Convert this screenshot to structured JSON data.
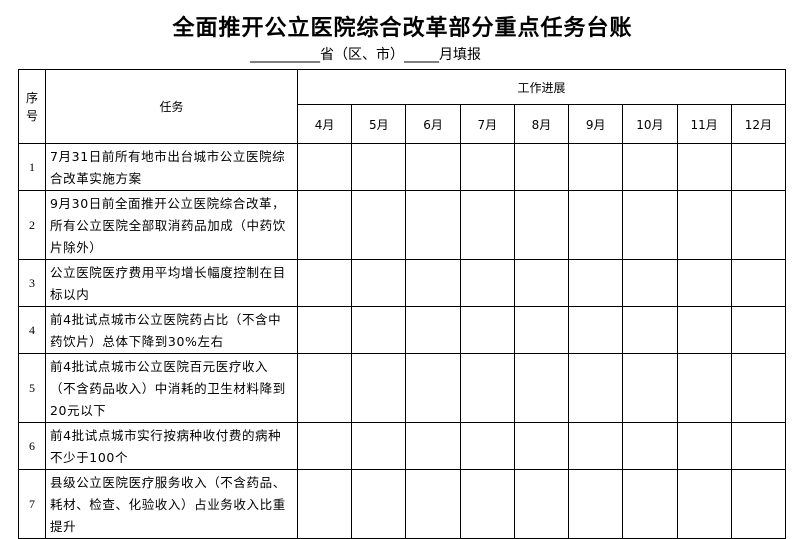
{
  "title": "全面推开公立医院综合改革部分重点任务台账",
  "subtitle": "__________省（区、市）_____月填报",
  "headers": {
    "seq": "序号",
    "task": "任务",
    "progress": "工作进展"
  },
  "months": [
    "4月",
    "5月",
    "6月",
    "7月",
    "8月",
    "9月",
    "10月",
    "11月",
    "12月"
  ],
  "rows": [
    {
      "seq": "1",
      "task": "7月31日前所有地市出台城市公立医院综合改革实施方案"
    },
    {
      "seq": "2",
      "task": "9月30日前全面推开公立医院综合改革，所有公立医院全部取消药品加成（中药饮片除外）"
    },
    {
      "seq": "3",
      "task": "公立医院医疗费用平均增长幅度控制在目标以内"
    },
    {
      "seq": "4",
      "task": "前4批试点城市公立医院药占比（不含中药饮片）总体下降到30%左右"
    },
    {
      "seq": "5",
      "task": "前4批试点城市公立医院百元医疗收入（不含药品收入）中消耗的卫生材料降到20元以下"
    },
    {
      "seq": "6",
      "task": "前4批试点城市实行按病种收付费的病种不少于100个"
    },
    {
      "seq": "7",
      "task": "县级公立医院医疗服务收入（不含药品、耗材、检查、化验收入）占业务收入比重提升"
    }
  ]
}
